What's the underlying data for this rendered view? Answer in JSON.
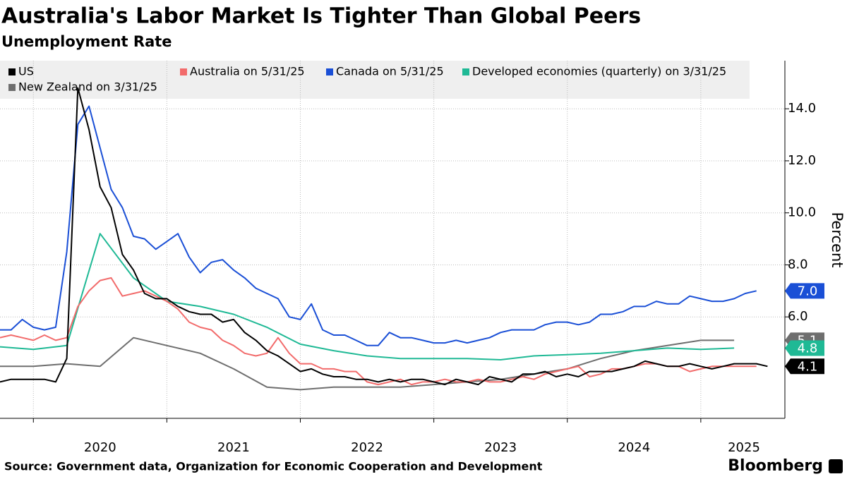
{
  "chart_data": {
    "type": "line",
    "title": "Australia's Labor Market Is Tighter Than Global Peers",
    "subtitle": "Unemployment Rate",
    "y_label": "Percent",
    "source": "Source: Government data, Organization for Economic Cooperation and Development",
    "brand": "Bloomberg",
    "x": [
      2019.75,
      2019.833,
      2019.917,
      2020,
      2020.083,
      2020.167,
      2020.25,
      2020.333,
      2020.417,
      2020.5,
      2020.583,
      2020.667,
      2020.75,
      2020.833,
      2020.917,
      2021,
      2021.083,
      2021.167,
      2021.25,
      2021.333,
      2021.417,
      2021.5,
      2021.583,
      2021.667,
      2021.75,
      2021.833,
      2021.917,
      2022,
      2022.083,
      2022.167,
      2022.25,
      2022.333,
      2022.417,
      2022.5,
      2022.583,
      2022.667,
      2022.75,
      2022.833,
      2022.917,
      2023,
      2023.083,
      2023.167,
      2023.25,
      2023.333,
      2023.417,
      2023.5,
      2023.583,
      2023.667,
      2023.75,
      2023.833,
      2023.917,
      2024,
      2024.083,
      2024.167,
      2024.25,
      2024.333,
      2024.417,
      2024.5,
      2024.583,
      2024.667,
      2024.75,
      2024.833,
      2024.917,
      2025,
      2025.083,
      2025.167,
      2025.25,
      2025.333,
      2025.417,
      2025.5
    ],
    "xlim": [
      2019.75,
      2025.63
    ],
    "xticks": [
      2020,
      2021,
      2022,
      2023,
      2024,
      2025
    ],
    "ylim": [
      2.1,
      15.85
    ],
    "yticks": [
      {
        "value": 6,
        "label": "6.0"
      },
      {
        "value": 8,
        "label": "8.0"
      },
      {
        "value": 10,
        "label": "10.0"
      },
      {
        "value": 12,
        "label": "12.0"
      },
      {
        "value": 14,
        "label": "14.0"
      }
    ],
    "grid": true,
    "series": [
      {
        "name": "US",
        "color": "#000000",
        "end_label": "4.1",
        "values": [
          3.5,
          3.6,
          3.6,
          3.6,
          3.6,
          3.5,
          4.4,
          14.8,
          13.2,
          11.0,
          10.2,
          8.4,
          7.8,
          6.9,
          6.7,
          6.7,
          6.4,
          6.2,
          6.1,
          6.1,
          5.8,
          5.9,
          5.4,
          5.1,
          4.7,
          4.5,
          4.2,
          3.9,
          4.0,
          3.8,
          3.7,
          3.7,
          3.6,
          3.6,
          3.5,
          3.6,
          3.5,
          3.6,
          3.6,
          3.5,
          3.4,
          3.6,
          3.5,
          3.4,
          3.7,
          3.6,
          3.5,
          3.8,
          3.8,
          3.9,
          3.7,
          3.8,
          3.7,
          3.9,
          3.9,
          3.9,
          4.0,
          4.1,
          4.3,
          4.2,
          4.1,
          4.1,
          4.2,
          4.1,
          4.0,
          4.1,
          4.2,
          4.2,
          4.2,
          4.1
        ]
      },
      {
        "name": "Australia on 5/31/25",
        "color": "#f26b6b",
        "values": [
          5.2,
          5.3,
          5.2,
          5.1,
          5.3,
          5.1,
          5.2,
          6.4,
          7.0,
          7.4,
          7.5,
          6.8,
          6.9,
          7.0,
          6.8,
          6.6,
          6.3,
          5.8,
          5.6,
          5.5,
          5.1,
          4.9,
          4.6,
          4.5,
          4.6,
          5.2,
          4.6,
          4.2,
          4.2,
          4.0,
          4.0,
          3.9,
          3.9,
          3.5,
          3.4,
          3.5,
          3.6,
          3.4,
          3.5,
          3.5,
          3.6,
          3.5,
          3.5,
          3.6,
          3.5,
          3.5,
          3.6,
          3.7,
          3.6,
          3.8,
          3.9,
          4.0,
          4.1,
          3.7,
          3.8,
          4.0,
          4.0,
          4.1,
          4.2,
          4.2,
          4.1,
          4.1,
          3.9,
          4.0,
          4.1,
          4.1,
          4.1,
          4.1,
          4.1,
          null
        ]
      },
      {
        "name": "Canada on 5/31/25",
        "color": "#1a4fd6",
        "end_label": "7.0",
        "values": [
          5.5,
          5.5,
          5.9,
          5.6,
          5.5,
          5.6,
          8.5,
          13.4,
          14.1,
          12.5,
          10.9,
          10.2,
          9.1,
          9.0,
          8.6,
          8.9,
          9.2,
          8.3,
          7.7,
          8.1,
          8.2,
          7.8,
          7.5,
          7.1,
          6.9,
          6.7,
          6.0,
          5.9,
          6.5,
          5.5,
          5.3,
          5.3,
          5.1,
          4.9,
          4.9,
          5.4,
          5.2,
          5.2,
          5.1,
          5.0,
          5.0,
          5.1,
          5.0,
          5.1,
          5.2,
          5.4,
          5.5,
          5.5,
          5.5,
          5.7,
          5.8,
          5.8,
          5.7,
          5.8,
          6.1,
          6.1,
          6.2,
          6.4,
          6.4,
          6.6,
          6.5,
          6.5,
          6.8,
          6.7,
          6.6,
          6.6,
          6.7,
          6.9,
          7.0,
          null
        ]
      },
      {
        "name": "Developed economies (quarterly) on 3/31/25",
        "color": "#1fb995",
        "end_label": "4.8",
        "x": [
          2019.75,
          2020,
          2020.25,
          2020.5,
          2020.75,
          2021,
          2021.25,
          2021.5,
          2021.75,
          2022,
          2022.25,
          2022.5,
          2022.75,
          2023,
          2023.25,
          2023.5,
          2023.75,
          2024,
          2024.25,
          2024.5,
          2024.75,
          2025,
          2025.25
        ],
        "values": [
          4.85,
          4.75,
          4.9,
          9.2,
          7.5,
          6.6,
          6.4,
          6.1,
          5.6,
          4.95,
          4.7,
          4.5,
          4.4,
          4.4,
          4.4,
          4.35,
          4.5,
          4.55,
          4.6,
          4.7,
          4.8,
          4.75,
          4.8
        ]
      },
      {
        "name": "New Zealand on 3/31/25",
        "color": "#6e6e6e",
        "end_label": "5.1",
        "x": [
          2019.75,
          2020,
          2020.25,
          2020.5,
          2020.75,
          2021,
          2021.25,
          2021.5,
          2021.75,
          2022,
          2022.25,
          2022.5,
          2022.75,
          2023,
          2023.25,
          2023.5,
          2023.75,
          2024,
          2024.25,
          2024.5,
          2024.75,
          2025,
          2025.25
        ],
        "values": [
          4.1,
          4.1,
          4.2,
          4.1,
          5.2,
          4.9,
          4.6,
          4.0,
          3.3,
          3.2,
          3.3,
          3.3,
          3.3,
          3.4,
          3.5,
          3.6,
          3.8,
          4.0,
          4.4,
          4.7,
          4.9,
          5.1,
          5.1
        ]
      }
    ]
  }
}
